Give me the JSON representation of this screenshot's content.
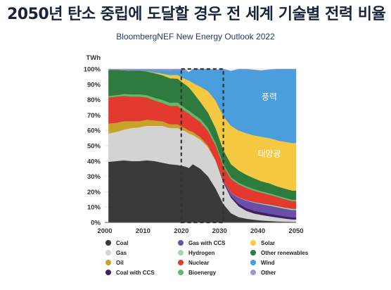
{
  "title": "2050년 탄소 중립에 도달할 경우 전 세계 기술별 전력 비율",
  "subtitle": "BloombergNEF New Energy Outlook 2022",
  "chart_data": {
    "type": "area",
    "stacked": true,
    "ylabel": "TWh",
    "xlim": [
      2000,
      2050
    ],
    "ylim": [
      0,
      100
    ],
    "x_ticks": [
      "2000",
      "2010",
      "2020",
      "2030",
      "2040",
      "2050"
    ],
    "y_ticks": [
      "0%",
      "10%",
      "20%",
      "30%",
      "40%",
      "50%",
      "60%",
      "70%",
      "80%",
      "90%",
      "100%"
    ],
    "highlight_range": [
      2020,
      2031
    ],
    "x": [
      2001,
      2003,
      2005,
      2007,
      2009,
      2011,
      2013,
      2015,
      2017,
      2019,
      2021,
      2022,
      2023,
      2025,
      2027,
      2029,
      2031,
      2033,
      2035,
      2037,
      2039,
      2041,
      2043,
      2045,
      2047,
      2049
    ],
    "series": [
      {
        "name": "Coal",
        "color": "#3a3a3a",
        "values": [
          39.5,
          40,
          40.5,
          40,
          40,
          40.5,
          40,
          39,
          38,
          37.5,
          36.5,
          35.5,
          38,
          35,
          30,
          22,
          12,
          6,
          3.5,
          2.5,
          1.8,
          1.3,
          1,
          0.7,
          0.5,
          0.4
        ]
      },
      {
        "name": "Gas",
        "color": "#d3d3d3",
        "values": [
          18.5,
          19,
          20,
          21.5,
          22,
          22.5,
          23,
          24,
          23.5,
          24,
          23,
          22.5,
          19,
          19,
          19,
          18,
          14,
          10,
          7,
          5,
          4,
          3.5,
          3,
          2.5,
          2,
          1.5
        ]
      },
      {
        "name": "Oil",
        "color": "#c9a22a",
        "values": [
          6.5,
          6,
          5.5,
          4.5,
          4,
          4,
          3.5,
          3,
          2.5,
          2.5,
          2,
          2,
          2,
          1.5,
          1,
          0.5,
          0.3,
          0.2,
          0.1,
          0.1,
          0.1,
          0.1,
          0.1,
          0.1,
          0.1,
          0.1
        ]
      },
      {
        "name": "Coal with CCS",
        "color": "#3e1f6e",
        "values": [
          0,
          0,
          0,
          0,
          0,
          0,
          0,
          0,
          0,
          0,
          0,
          0,
          0,
          0,
          0,
          0,
          0.4,
          1,
          1.5,
          1.7,
          1.8,
          1.7,
          1.6,
          1.5,
          1.4,
          1.3
        ]
      },
      {
        "name": "Gas with CCS",
        "color": "#6a4fa8",
        "values": [
          0,
          0,
          0,
          0,
          0,
          0,
          0,
          0,
          0,
          0,
          0,
          0,
          0,
          0,
          0,
          0,
          0.5,
          2,
          4,
          5,
          5.2,
          5.3,
          5.3,
          5.2,
          5,
          4.8
        ]
      },
      {
        "name": "Hydrogen",
        "color": "#9fd8b0",
        "values": [
          0,
          0,
          0,
          0,
          0,
          0,
          0,
          0,
          0,
          0,
          0,
          0,
          0,
          0,
          0,
          0,
          0,
          0.1,
          0.2,
          0.3,
          0.4,
          0.5,
          0.6,
          0.7,
          0.7,
          0.8
        ]
      },
      {
        "name": "Nuclear",
        "color": "#e3392f",
        "values": [
          17,
          17,
          16.5,
          16,
          16,
          14.5,
          13,
          12,
          12,
          12,
          11,
          11,
          10,
          10,
          9.5,
          9.5,
          9.5,
          9,
          8.5,
          8,
          7.5,
          7,
          6.5,
          6,
          5.5,
          5
        ]
      },
      {
        "name": "Bioenergy",
        "color": "#5fbb6a",
        "values": [
          1,
          1,
          1.2,
          1.5,
          1.5,
          1.5,
          1.8,
          2,
          2,
          2.2,
          2,
          2,
          2,
          2,
          2,
          1.8,
          1.5,
          1.2,
          1.1,
          1,
          1,
          0.9,
          0.9,
          0.9,
          0.9,
          0.9
        ]
      },
      {
        "name": "Other renewables",
        "color": "#2f7a3e",
        "values": [
          17,
          16.5,
          15.5,
          15.5,
          15.5,
          15.5,
          16,
          16,
          16,
          15.5,
          15.5,
          15,
          14,
          11,
          10,
          9.5,
          9,
          8.5,
          8,
          7.5,
          7,
          6.5,
          6.5,
          6,
          6,
          6
        ]
      },
      {
        "name": "Solar",
        "color": "#f5c842",
        "values": [
          0,
          0,
          0,
          0,
          0,
          0.2,
          0.5,
          1,
          2,
          2.5,
          3.5,
          4.5,
          6,
          10,
          14,
          18,
          22,
          25,
          26,
          27,
          28,
          29,
          29.5,
          30,
          30.5,
          31
        ]
      },
      {
        "name": "Wind",
        "color": "#4a9edc",
        "values": [
          0,
          0,
          0,
          0.2,
          0.5,
          0.8,
          1.5,
          2.3,
          3,
          3.3,
          5.5,
          5.5,
          8.8,
          11.3,
          14.3,
          20,
          30.6,
          35.6,
          39.9,
          41.7,
          42.5,
          43.1,
          44.5,
          46.2,
          47.3,
          48
        ]
      },
      {
        "name": "Other",
        "color": "#a595c6",
        "values": [
          0.5,
          0.5,
          0.8,
          0.8,
          0.5,
          0.5,
          0.7,
          0.7,
          1,
          0.5,
          1,
          0,
          0.2,
          0.2,
          0.2,
          0.2,
          0.2,
          0.2,
          0.2,
          0.2,
          0.2,
          0.2,
          0.2,
          0.2,
          0.2,
          0.2
        ]
      }
    ],
    "annotations": [
      {
        "text": "풍력",
        "x": 2043,
        "y": 80
      },
      {
        "text": "태양광",
        "x": 2043,
        "y": 43
      }
    ],
    "legend": {
      "columns": [
        [
          "Coal",
          "Gas",
          "Oil",
          "Coal with CCS"
        ],
        [
          "Gas with CCS",
          "Hydrogen",
          "Nuclear",
          "Bioenergy"
        ],
        [
          "Solar",
          "Other renewables",
          "Wind",
          "Other"
        ]
      ]
    }
  }
}
